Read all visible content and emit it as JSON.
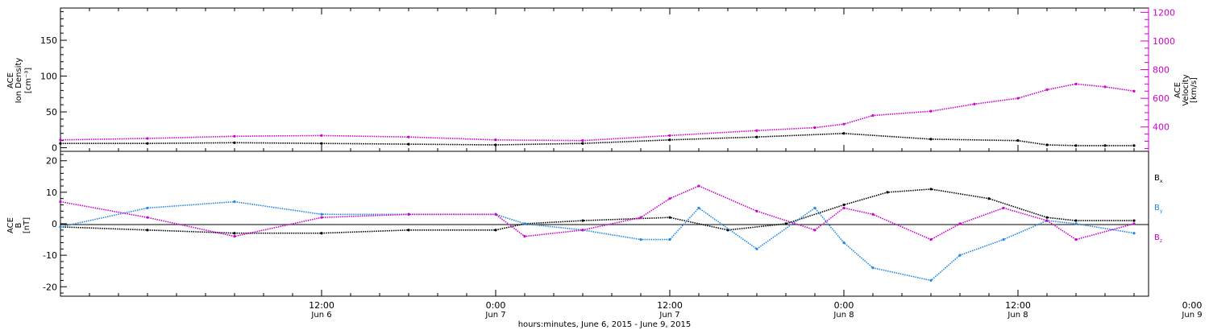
{
  "chart_data": [
    {
      "type": "scatter",
      "panel": "top",
      "ylabel_left": [
        "ACE",
        "Ion Density",
        "[cm⁻³]"
      ],
      "ylabel_right": [
        "ACE",
        "Velocity",
        "[km/s]"
      ],
      "xlim": [
        -6,
        69
      ],
      "ylim_left": [
        -5,
        195
      ],
      "ylim_right": [
        230,
        1230
      ],
      "yticks_left": [
        0,
        50,
        100,
        150
      ],
      "yticks_right": [
        400,
        600,
        800,
        1000,
        1200
      ],
      "grid": false,
      "series": [
        {
          "axis": "left",
          "color": "#000000",
          "x": [
            -6,
            0,
            6,
            12,
            18,
            24,
            30,
            36,
            42,
            48,
            54,
            60,
            62,
            64,
            66,
            68
          ],
          "y": [
            6,
            6,
            7,
            6,
            5,
            4,
            6,
            11,
            15,
            20,
            12,
            10,
            4,
            3,
            3,
            3
          ]
        },
        {
          "axis": "right",
          "color": "#cc00cc",
          "x": [
            -6,
            0,
            6,
            12,
            18,
            24,
            30,
            36,
            42,
            46,
            48,
            50,
            54,
            57,
            60,
            62,
            64,
            66,
            68
          ],
          "y": [
            310,
            320,
            335,
            340,
            330,
            310,
            305,
            340,
            375,
            395,
            420,
            480,
            510,
            560,
            600,
            660,
            700,
            680,
            650
          ]
        }
      ]
    },
    {
      "type": "scatter",
      "panel": "bottom",
      "ylabel_left": [
        "ACE",
        "B",
        "[nT]"
      ],
      "xlim": [
        -6,
        69
      ],
      "ylim": [
        -23,
        23
      ],
      "yticks": [
        -20,
        -10,
        0,
        10,
        20
      ],
      "grid": false,
      "series": [
        {
          "name": "Bx",
          "color": "#000000",
          "x": [
            -6,
            0,
            6,
            12,
            18,
            24,
            26,
            30,
            36,
            40,
            44,
            48,
            51,
            54,
            58,
            62,
            64,
            68
          ],
          "y": [
            -1,
            -2,
            -3,
            -3,
            -2,
            -2,
            0,
            1,
            2,
            -2,
            0,
            6,
            10,
            11,
            8,
            2,
            1,
            1
          ]
        },
        {
          "name": "By",
          "color": "#1e88e5",
          "x": [
            -6,
            0,
            6,
            12,
            18,
            24,
            26,
            30,
            34,
            36,
            38,
            42,
            46,
            48,
            50,
            54,
            56,
            59,
            62,
            64,
            68
          ],
          "y": [
            -1,
            5,
            7,
            3,
            3,
            3,
            0,
            -2,
            -5,
            -5,
            5,
            -8,
            5,
            -6,
            -14,
            -18,
            -10,
            -5,
            1,
            0,
            -3
          ]
        },
        {
          "name": "Bz",
          "color": "#cc00cc",
          "x": [
            -6,
            0,
            6,
            12,
            18,
            24,
            26,
            30,
            34,
            36,
            38,
            42,
            46,
            48,
            50,
            54,
            56,
            59,
            62,
            64,
            68
          ],
          "y": [
            7,
            2,
            -4,
            2,
            3,
            3,
            -4,
            -2,
            2,
            8,
            12,
            4,
            -2,
            5,
            3,
            -5,
            0,
            5,
            1,
            -5,
            0
          ]
        }
      ]
    }
  ],
  "x_axis": {
    "ticks": [
      {
        "h": 12,
        "time": "12:00",
        "day": "Jun 6"
      },
      {
        "h": 24,
        "time": "0:00",
        "day": "Jun 7"
      },
      {
        "h": 36,
        "time": "12:00",
        "day": "Jun 7"
      },
      {
        "h": 48,
        "time": "0:00",
        "day": "Jun 8"
      },
      {
        "h": 60,
        "time": "12:00",
        "day": "Jun 8"
      },
      {
        "h": 72,
        "time": "0:00",
        "day": "Jun 9"
      }
    ],
    "title": "hours:minutes, June  6, 2015 - June  9, 2015"
  },
  "legend": {
    "bx": {
      "main": "B",
      "sub": "x",
      "color": "#000000"
    },
    "by": {
      "main": "B",
      "sub": "y",
      "color": "#1e88e5"
    },
    "bz": {
      "main": "B",
      "sub": "z",
      "color": "#cc00cc"
    }
  },
  "colors": {
    "black": "#000000",
    "magenta": "#cc00cc",
    "blue": "#1e88e5"
  }
}
